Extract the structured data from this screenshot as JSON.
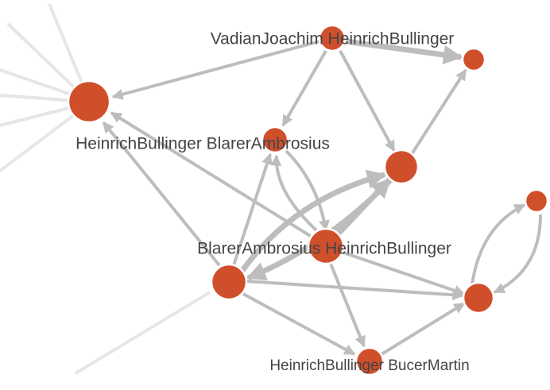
{
  "nodes": [
    {
      "label": "VadianJoachim HeinrichBullinger"
    },
    {
      "label": "HeinrichBullinger BlarerAmbrosius"
    },
    {
      "label": "BlarerAmbrosius HeinrichBullinger"
    },
    {
      "label": "HeinrichBullinger BucerMartin"
    }
  ]
}
